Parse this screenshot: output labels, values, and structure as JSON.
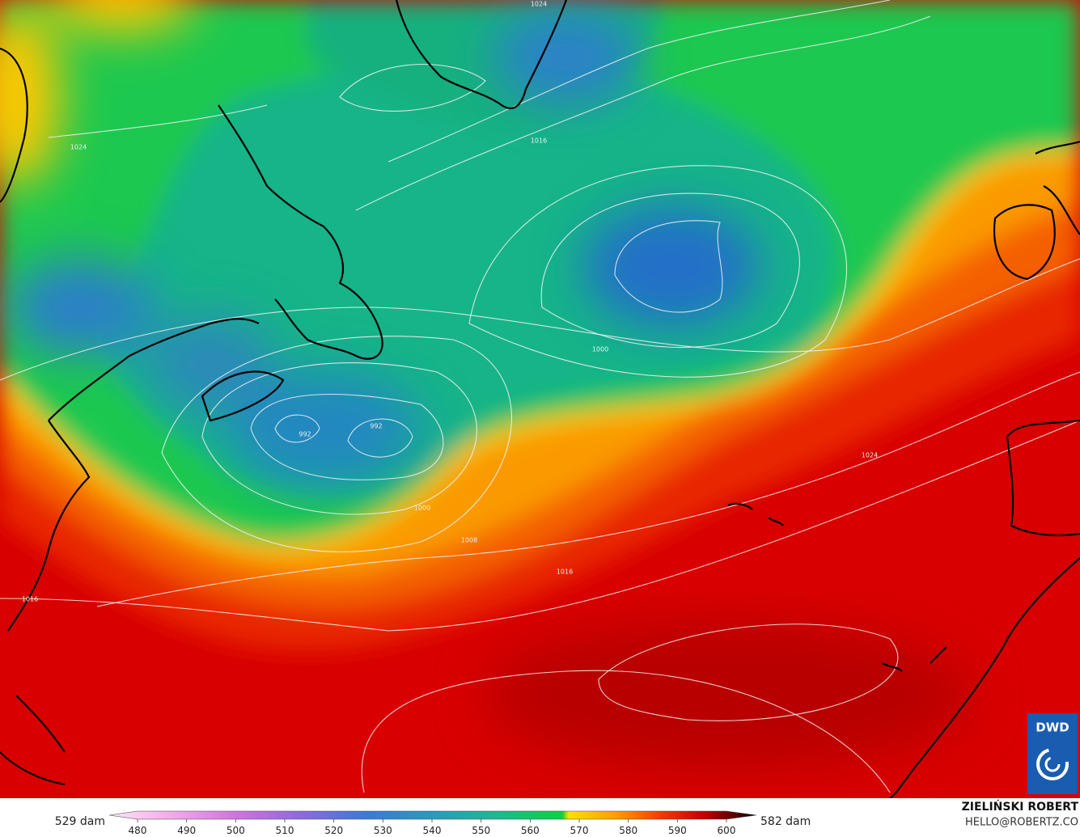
{
  "map": {
    "isobar_labels": [
      "1024",
      "1016",
      "1024",
      "992",
      "992",
      "1000",
      "1000",
      "1008",
      "1016",
      "1024",
      "1016"
    ]
  },
  "colorbar": {
    "low_label": "529 dam",
    "high_label": "582 dam",
    "ticks": [
      480,
      490,
      500,
      510,
      520,
      530,
      540,
      550,
      560,
      570,
      580,
      590,
      600
    ]
  },
  "credit": {
    "name": "ZIELIŃSKI ROBERT",
    "email": "HELLO@ROBERTZ.CO"
  },
  "logo": {
    "text": "DWD"
  }
}
